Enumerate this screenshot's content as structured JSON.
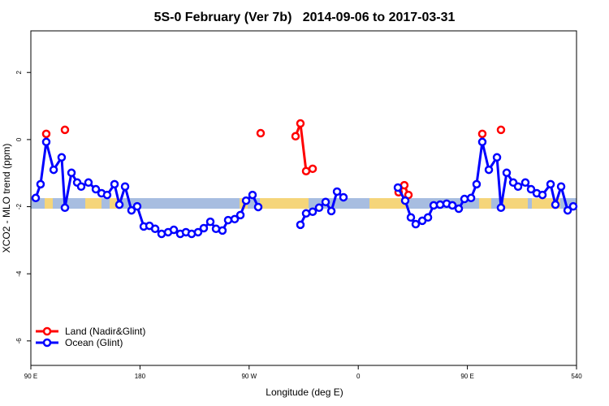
{
  "chart_data": {
    "type": "line",
    "title": "5S-0 February (Ver 7b)   2014-09-06 to 2017-03-31",
    "x_label": "Longitude (deg E)",
    "y_label": "XCO2 - MLO trend (ppm)",
    "xlim": [
      90,
      540
    ],
    "ylim": [
      -6.73,
      3.24
    ],
    "xticks": [
      {
        "value": 90,
        "label": "90 E"
      },
      180,
      {
        "value": 270,
        "label": "90 W"
      },
      {
        "value": 360,
        "label": "0"
      },
      {
        "value": 450,
        "label": "90 E"
      },
      540
    ],
    "yticks": [
      2,
      0,
      -2,
      -4,
      -6
    ],
    "legend": "bottomleft",
    "series": [
      {
        "name": "Land (Nadir&Glint)",
        "color": "#ff0000",
        "x": [
          102.7,
          null,
          118.1,
          null,
          279.5,
          null,
          308.3,
          312.3,
          317.0,
          322.4,
          null,
          393.3,
          398.0,
          401.4,
          null,
          462.3,
          null,
          477.7
        ],
        "values": [
          0.17,
          null,
          0.29,
          null,
          0.19,
          null,
          0.1,
          0.48,
          -0.94,
          -0.87,
          null,
          -1.57,
          -1.36,
          -1.65,
          null,
          0.17,
          null,
          0.29
        ]
      },
      {
        "name": "Ocean (Glint)",
        "color": "#0000ff",
        "x": [
          94.0,
          98.0,
          102.7,
          108.8,
          115.4,
          118.1,
          123.5,
          128.2,
          131.5,
          137.5,
          143.6,
          148.3,
          152.9,
          159.0,
          163.0,
          167.7,
          173.0,
          177.7,
          183.1,
          187.8,
          192.5,
          197.8,
          203.2,
          207.9,
          213.2,
          217.9,
          222.6,
          227.9,
          232.6,
          238.0,
          242.7,
          248.0,
          252.7,
          258.1,
          262.8,
          267.5,
          272.8,
          277.5,
          null,
          312.3,
          317.0,
          322.4,
          327.7,
          333.1,
          337.8,
          342.5,
          347.8,
          null,
          392.7,
          398.7,
          403.4,
          407.4,
          412.8,
          417.5,
          422.2,
          427.5,
          432.9,
          437.6,
          442.9,
          447.6,
          453.0,
          457.6,
          462.3,
          467.7,
          474.4,
          477.7,
          482.4,
          487.8,
          491.8,
          497.8,
          502.5,
          507.2,
          511.9,
          518.6,
          522.6,
          527.3,
          532.7,
          537.3
        ],
        "values": [
          -1.74,
          -1.33,
          -0.07,
          -0.9,
          -0.53,
          -2.03,
          -0.99,
          -1.28,
          -1.4,
          -1.28,
          -1.48,
          -1.6,
          -1.65,
          -1.33,
          -1.94,
          -1.4,
          -2.11,
          -1.99,
          -2.59,
          -2.57,
          -2.66,
          -2.81,
          -2.76,
          -2.69,
          -2.81,
          -2.76,
          -2.81,
          -2.76,
          -2.64,
          -2.45,
          -2.66,
          -2.71,
          -2.4,
          -2.37,
          -2.25,
          -1.82,
          -1.65,
          -2.01,
          null,
          -2.54,
          -2.2,
          -2.15,
          -2.03,
          -1.86,
          -2.13,
          -1.55,
          -1.72,
          null,
          -1.43,
          -1.82,
          -2.32,
          -2.52,
          -2.42,
          -2.32,
          -1.96,
          -1.94,
          -1.91,
          -1.96,
          -2.06,
          -1.77,
          -1.74,
          -1.33,
          -0.07,
          -0.9,
          -0.53,
          -2.03,
          -0.99,
          -1.28,
          -1.4,
          -1.28,
          -1.48,
          -1.6,
          -1.65,
          -1.33,
          -1.94,
          -1.4,
          -2.11,
          -1.99
        ]
      }
    ]
  }
}
